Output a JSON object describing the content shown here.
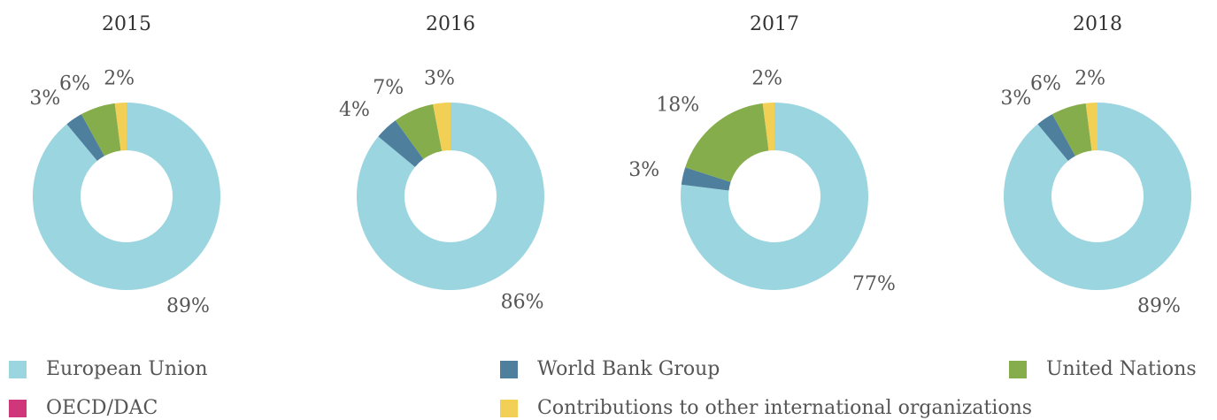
{
  "chart_data": [
    {
      "type": "pie",
      "donut": true,
      "title": "2015",
      "categories": [
        "European Union",
        "World Bank Group",
        "United Nations",
        "OECD/DAC",
        "Contributions to other international organizations"
      ],
      "values": [
        89,
        3,
        6,
        0,
        2
      ],
      "value_labels": [
        "89%",
        "3%",
        "6%",
        null,
        "2%"
      ],
      "colors": [
        "#9ad5e0",
        "#4e7f9c",
        "#86ad4b",
        "#d0367a",
        "#f2cf55"
      ]
    },
    {
      "type": "pie",
      "donut": true,
      "title": "2016",
      "categories": [
        "European Union",
        "World Bank Group",
        "United Nations",
        "OECD/DAC",
        "Contributions to other international organizations"
      ],
      "values": [
        86,
        4,
        7,
        0,
        3
      ],
      "value_labels": [
        "86%",
        "4%",
        "7%",
        null,
        "3%"
      ],
      "colors": [
        "#9ad5e0",
        "#4e7f9c",
        "#86ad4b",
        "#d0367a",
        "#f2cf55"
      ]
    },
    {
      "type": "pie",
      "donut": true,
      "title": "2017",
      "categories": [
        "European Union",
        "World Bank Group",
        "United Nations",
        "OECD/DAC",
        "Contributions to other international organizations"
      ],
      "values": [
        77,
        3,
        18,
        0,
        2
      ],
      "value_labels": [
        "77%",
        "3%",
        "18%",
        null,
        "2%"
      ],
      "colors": [
        "#9ad5e0",
        "#4e7f9c",
        "#86ad4b",
        "#d0367a",
        "#f2cf55"
      ]
    },
    {
      "type": "pie",
      "donut": true,
      "title": "2018",
      "categories": [
        "European Union",
        "World Bank Group",
        "United Nations",
        "OECD/DAC",
        "Contributions to other international organizations"
      ],
      "values": [
        89,
        3,
        6,
        0,
        2
      ],
      "value_labels": [
        "89%",
        "3%",
        "6%",
        null,
        "2%"
      ],
      "colors": [
        "#9ad5e0",
        "#4e7f9c",
        "#86ad4b",
        "#d0367a",
        "#f2cf55"
      ]
    }
  ]
}
